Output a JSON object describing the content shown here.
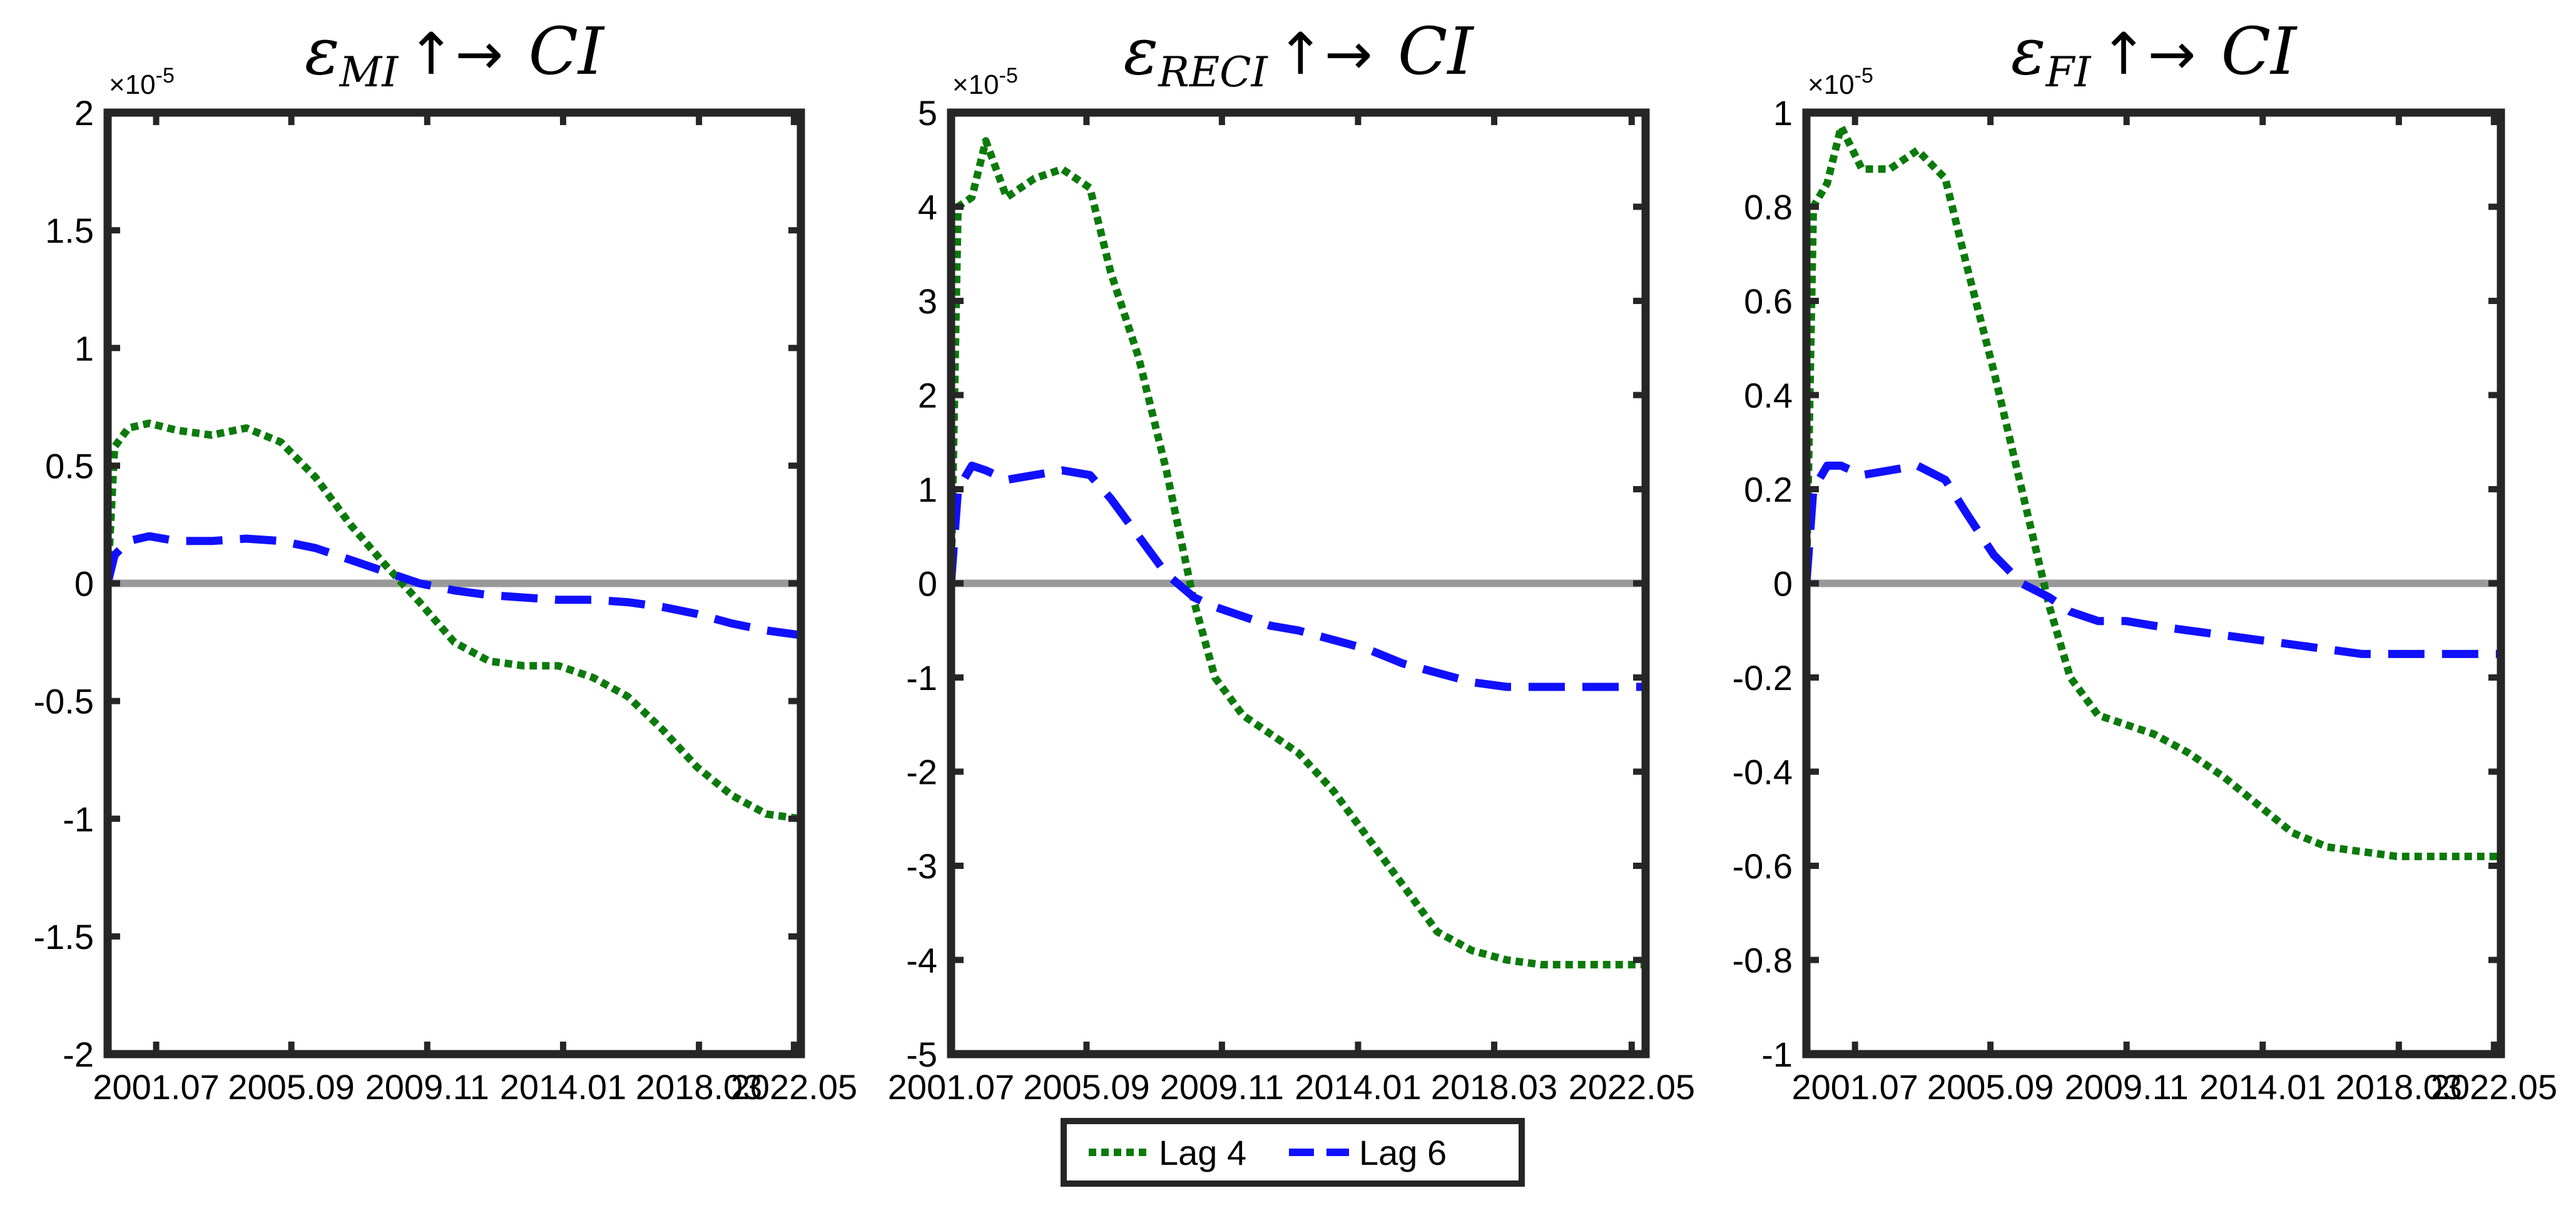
{
  "chart_data": [
    {
      "type": "line",
      "title": {
        "symbol": "ε",
        "subscript": "MI",
        "arrows": "↑→",
        "target": "CI"
      },
      "exponent_label": "×10",
      "exponent_power": "-5",
      "ylim": [
        -2,
        2
      ],
      "yticks": [
        -2,
        -1.5,
        -1,
        -0.5,
        0,
        0.5,
        1,
        1.5,
        2
      ],
      "ytick_labels": [
        "-2",
        "-1.5",
        "-1",
        "-0.5",
        "0",
        "0.5",
        "1",
        "1.5",
        "2"
      ],
      "xlim": [
        0,
        1
      ],
      "xticks": [
        0.07,
        0.265,
        0.461,
        0.657,
        0.853,
        0.99
      ],
      "xtick_labels": [
        "2001.07",
        "2005.09",
        "2009.11",
        "2014.01",
        "2018.03",
        "2022.05"
      ],
      "zero_line": true,
      "series": [
        {
          "name": "Lag 4",
          "x": [
            0.0,
            0.01,
            0.03,
            0.06,
            0.1,
            0.15,
            0.2,
            0.25,
            0.3,
            0.35,
            0.4,
            0.45,
            0.5,
            0.55,
            0.6,
            0.65,
            0.7,
            0.75,
            0.8,
            0.85,
            0.9,
            0.95,
            1.0
          ],
          "y": [
            0.0,
            0.58,
            0.66,
            0.68,
            0.65,
            0.63,
            0.66,
            0.6,
            0.45,
            0.25,
            0.08,
            -0.08,
            -0.25,
            -0.33,
            -0.35,
            -0.35,
            -0.4,
            -0.48,
            -0.62,
            -0.78,
            -0.9,
            -0.98,
            -1.0
          ]
        },
        {
          "name": "Lag 6",
          "x": [
            0.0,
            0.01,
            0.03,
            0.06,
            0.1,
            0.15,
            0.2,
            0.25,
            0.3,
            0.35,
            0.4,
            0.45,
            0.5,
            0.55,
            0.6,
            0.65,
            0.7,
            0.75,
            0.8,
            0.85,
            0.9,
            0.95,
            1.0
          ],
          "y": [
            0.0,
            0.12,
            0.18,
            0.2,
            0.18,
            0.18,
            0.19,
            0.18,
            0.15,
            0.1,
            0.05,
            0.0,
            -0.03,
            -0.05,
            -0.06,
            -0.07,
            -0.07,
            -0.08,
            -0.1,
            -0.13,
            -0.17,
            -0.2,
            -0.22
          ]
        }
      ]
    },
    {
      "type": "line",
      "title": {
        "symbol": "ε",
        "subscript": "RECI",
        "arrows": "↑→",
        "target": "CI"
      },
      "exponent_label": "×10",
      "exponent_power": "-5",
      "ylim": [
        -5,
        5
      ],
      "yticks": [
        -5,
        -4,
        -3,
        -2,
        -1,
        0,
        1,
        2,
        3,
        4,
        5
      ],
      "ytick_labels": [
        "-5",
        "-4",
        "-3",
        "-2",
        "-1",
        "0",
        "1",
        "2",
        "3",
        "4",
        "5"
      ],
      "xlim": [
        0,
        1
      ],
      "xticks": [
        0.0,
        0.195,
        0.39,
        0.586,
        0.782,
        0.98
      ],
      "xtick_labels": [
        "2001.07",
        "2005.09",
        "2009.11",
        "2014.01",
        "2018.03",
        "2022.05"
      ],
      "zero_line": true,
      "series": [
        {
          "name": "Lag 4",
          "x": [
            0.0,
            0.01,
            0.03,
            0.05,
            0.08,
            0.12,
            0.16,
            0.2,
            0.23,
            0.27,
            0.31,
            0.35,
            0.38,
            0.42,
            0.46,
            0.5,
            0.55,
            0.6,
            0.65,
            0.7,
            0.75,
            0.8,
            0.85,
            0.9,
            0.95,
            1.0
          ],
          "y": [
            0.0,
            4.0,
            4.1,
            4.7,
            4.1,
            4.3,
            4.4,
            4.2,
            3.3,
            2.4,
            1.2,
            -0.2,
            -1.0,
            -1.4,
            -1.6,
            -1.8,
            -2.2,
            -2.7,
            -3.2,
            -3.7,
            -3.9,
            -4.0,
            -4.05,
            -4.05,
            -4.05,
            -4.05
          ]
        },
        {
          "name": "Lag 6",
          "x": [
            0.0,
            0.01,
            0.03,
            0.05,
            0.08,
            0.12,
            0.16,
            0.2,
            0.23,
            0.27,
            0.31,
            0.35,
            0.38,
            0.42,
            0.46,
            0.5,
            0.55,
            0.6,
            0.65,
            0.7,
            0.75,
            0.8,
            0.85,
            0.9,
            0.95,
            1.0
          ],
          "y": [
            0.0,
            1.0,
            1.25,
            1.2,
            1.1,
            1.15,
            1.2,
            1.15,
            0.9,
            0.5,
            0.1,
            -0.15,
            -0.25,
            -0.35,
            -0.45,
            -0.5,
            -0.6,
            -0.7,
            -0.85,
            -0.95,
            -1.05,
            -1.1,
            -1.1,
            -1.1,
            -1.1,
            -1.1
          ]
        }
      ]
    },
    {
      "type": "line",
      "title": {
        "symbol": "ε",
        "subscript": "FI",
        "arrows": "↑→",
        "target": "CI"
      },
      "exponent_label": "×10",
      "exponent_power": "-5",
      "ylim": [
        -1,
        1
      ],
      "yticks": [
        -1,
        -0.8,
        -0.6,
        -0.4,
        -0.2,
        0,
        0.2,
        0.4,
        0.6,
        0.8,
        1
      ],
      "ytick_labels": [
        "-1",
        "-0.8",
        "-0.6",
        "-0.4",
        "-0.2",
        "0",
        "0.2",
        "0.4",
        "0.6",
        "0.8",
        "1"
      ],
      "xlim": [
        0,
        1
      ],
      "xticks": [
        0.07,
        0.265,
        0.461,
        0.657,
        0.853,
        0.99
      ],
      "xtick_labels": [
        "2001.07",
        "2005.09",
        "2009.11",
        "2014.01",
        "2018.03",
        "2022.05"
      ],
      "zero_line": true,
      "series": [
        {
          "name": "Lag 4",
          "x": [
            0.0,
            0.01,
            0.03,
            0.05,
            0.08,
            0.12,
            0.16,
            0.2,
            0.23,
            0.27,
            0.31,
            0.35,
            0.38,
            0.42,
            0.46,
            0.5,
            0.55,
            0.6,
            0.65,
            0.7,
            0.75,
            0.8,
            0.85,
            0.9,
            0.95,
            1.0
          ],
          "y": [
            0.0,
            0.8,
            0.85,
            0.97,
            0.88,
            0.88,
            0.92,
            0.86,
            0.68,
            0.45,
            0.2,
            -0.05,
            -0.2,
            -0.28,
            -0.3,
            -0.32,
            -0.36,
            -0.41,
            -0.47,
            -0.53,
            -0.56,
            -0.57,
            -0.58,
            -0.58,
            -0.58,
            -0.58
          ]
        },
        {
          "name": "Lag 6",
          "x": [
            0.0,
            0.01,
            0.03,
            0.05,
            0.08,
            0.12,
            0.16,
            0.2,
            0.23,
            0.27,
            0.31,
            0.35,
            0.38,
            0.42,
            0.46,
            0.5,
            0.55,
            0.6,
            0.65,
            0.7,
            0.75,
            0.8,
            0.85,
            0.9,
            0.95,
            1.0
          ],
          "y": [
            0.0,
            0.2,
            0.25,
            0.25,
            0.23,
            0.24,
            0.25,
            0.22,
            0.15,
            0.06,
            0.0,
            -0.03,
            -0.06,
            -0.08,
            -0.08,
            -0.09,
            -0.1,
            -0.11,
            -0.12,
            -0.13,
            -0.14,
            -0.15,
            -0.15,
            -0.15,
            -0.15,
            -0.15
          ]
        }
      ]
    }
  ],
  "legend": {
    "entries": [
      {
        "label": "Lag 4",
        "color": "#0b7a0b",
        "style": "dotted"
      },
      {
        "label": "Lag 6",
        "color": "#1010ff",
        "style": "dashed"
      }
    ],
    "placement": "bottom-center"
  },
  "colors": {
    "lag4": "#0b7a0b",
    "lag6": "#1010ff",
    "zero_line": "#999999",
    "axes": "#262626"
  }
}
